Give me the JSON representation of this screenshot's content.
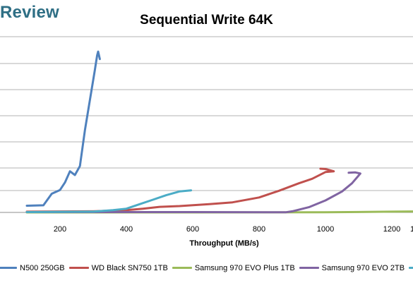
{
  "logo": {
    "text": "Review"
  },
  "chart_data": {
    "type": "line",
    "title": "Sequential Write 64K",
    "xlabel": "Throughput (MB/s)",
    "ylabel": "",
    "x_ticks": [
      200,
      400,
      600,
      800,
      1000,
      1200
    ],
    "last_tick_partial": "1",
    "xlim": [
      100,
      1400
    ],
    "grid": true,
    "legend_position": "bottom",
    "series": [
      {
        "name": "N500 250GB",
        "color": "#4f81bd",
        "points": [
          [
            100,
            0.9
          ],
          [
            150,
            0.95
          ],
          [
            175,
            2.5
          ],
          [
            200,
            3.0
          ],
          [
            215,
            4.0
          ],
          [
            230,
            5.5
          ],
          [
            245,
            5.0
          ],
          [
            260,
            6.2
          ],
          [
            275,
            11.0
          ],
          [
            290,
            15.0
          ],
          [
            305,
            19.0
          ],
          [
            312,
            21.0
          ],
          [
            315,
            21.5
          ],
          [
            320,
            20.5
          ]
        ]
      },
      {
        "name": "WD Black SN750 1TB",
        "color": "#c0504d",
        "points": [
          [
            100,
            0.1
          ],
          [
            300,
            0.15
          ],
          [
            400,
            0.3
          ],
          [
            450,
            0.5
          ],
          [
            500,
            0.75
          ],
          [
            560,
            0.85
          ],
          [
            650,
            1.1
          ],
          [
            720,
            1.35
          ],
          [
            800,
            2.0
          ],
          [
            860,
            2.9
          ],
          [
            920,
            3.9
          ],
          [
            960,
            4.5
          ],
          [
            1000,
            5.4
          ],
          [
            1025,
            5.5
          ],
          [
            1000,
            5.8
          ],
          [
            985,
            5.85
          ]
        ]
      },
      {
        "name": "Samsung 970 EVO Plus 1TB",
        "color": "#9bbb59",
        "points": [
          [
            100,
            0.0
          ],
          [
            600,
            0.0
          ],
          [
            1000,
            0.02
          ],
          [
            1200,
            0.1
          ],
          [
            1300,
            0.15
          ],
          [
            1350,
            0.1
          ],
          [
            1380,
            0.15
          ],
          [
            1400,
            0.6
          ]
        ]
      },
      {
        "name": "Samsung 970 EVO 2TB",
        "color": "#8064a2",
        "points": [
          [
            100,
            0.05
          ],
          [
            600,
            0.05
          ],
          [
            880,
            0.02
          ],
          [
            900,
            0.15
          ],
          [
            950,
            0.7
          ],
          [
            1000,
            1.6
          ],
          [
            1050,
            2.8
          ],
          [
            1080,
            3.9
          ],
          [
            1105,
            5.2
          ],
          [
            1090,
            5.35
          ],
          [
            1070,
            5.3
          ]
        ]
      },
      {
        "name": "",
        "color": "#4bacc6",
        "points": [
          [
            100,
            0.05
          ],
          [
            300,
            0.1
          ],
          [
            360,
            0.3
          ],
          [
            400,
            0.5
          ],
          [
            440,
            1.1
          ],
          [
            480,
            1.7
          ],
          [
            520,
            2.3
          ],
          [
            560,
            2.8
          ],
          [
            595,
            2.95
          ]
        ]
      }
    ]
  }
}
